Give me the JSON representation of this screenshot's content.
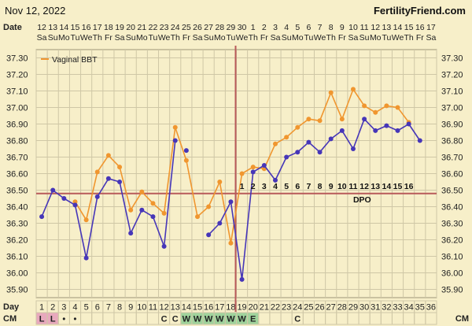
{
  "header": {
    "date": "Nov 12, 2022",
    "site": "FertilityFriend.com"
  },
  "row_labels": {
    "date": "Date",
    "day": "Day",
    "cm": "CM"
  },
  "dates": [
    "12",
    "13",
    "14",
    "15",
    "16",
    "17",
    "18",
    "19",
    "20",
    "21",
    "22",
    "23",
    "24",
    "25",
    "26",
    "27",
    "28",
    "29",
    "30",
    "1",
    "2",
    "3",
    "4",
    "5",
    "6",
    "7",
    "8",
    "9",
    "10",
    "11",
    "12",
    "13",
    "14",
    "15",
    "16",
    "17"
  ],
  "weekdays": [
    "Sa",
    "Su",
    "Mo",
    "Tu",
    "We",
    "Th",
    "Fr",
    "Sa",
    "Su",
    "Mo",
    "Tu",
    "We",
    "Th",
    "Fr",
    "Sa",
    "Su",
    "Mo",
    "Tu",
    "We",
    "Th",
    "Fr",
    "Sa",
    "Su",
    "Mo",
    "Tu",
    "We",
    "Th",
    "Fr",
    "Sa",
    "Su",
    "Mo",
    "Tu",
    "We",
    "Th",
    "Fr",
    "Sa"
  ],
  "cycle_days": [
    "1",
    "2",
    "3",
    "4",
    "5",
    "6",
    "7",
    "8",
    "9",
    "10",
    "11",
    "12",
    "13",
    "14",
    "15",
    "16",
    "17",
    "18",
    "19",
    "20",
    "21",
    "22",
    "23",
    "24",
    "25",
    "26",
    "27",
    "28",
    "29",
    "30",
    "31",
    "32",
    "33",
    "34",
    "35",
    "36"
  ],
  "cm": [
    "L",
    "L",
    "•",
    "•",
    "",
    "",
    "",
    "",
    "",
    "",
    "",
    "C",
    "C",
    "W",
    "W",
    "W",
    "W",
    "W",
    "W",
    "E",
    "",
    "",
    "",
    "C",
    "",
    "",
    "",
    "",
    "",
    "",
    "",
    "",
    "",
    "",
    "",
    ""
  ],
  "cm_colors": {
    "L": "#e8a9bd",
    "W": "#9fd39c",
    "E": "#9fd39c"
  },
  "dpo_label": "DPO",
  "dpo_numbers": [
    "1",
    "2",
    "3",
    "4",
    "5",
    "6",
    "7",
    "8",
    "9",
    "10",
    "11",
    "12",
    "13",
    "14",
    "15",
    "16"
  ],
  "colors": {
    "background": "#f7efc9",
    "grid": "#cfc7a6",
    "orange": "#f0962f",
    "purple": "#4636b8",
    "coverline": "#b85a5a",
    "ovulation_line": "#b85a5a"
  },
  "chart_data": {
    "type": "line",
    "x": [
      1,
      2,
      3,
      4,
      5,
      6,
      7,
      8,
      9,
      10,
      11,
      12,
      13,
      14,
      15,
      16,
      17,
      18,
      19,
      20,
      21,
      22,
      23,
      24,
      25,
      26,
      27,
      28,
      29,
      30,
      31,
      32,
      33,
      34,
      35,
      36
    ],
    "ylim": [
      35.85,
      37.35
    ],
    "y_ticks": [
      "37.30",
      "37.20",
      "37.10",
      "37.00",
      "36.90",
      "36.80",
      "36.70",
      "36.60",
      "36.50",
      "36.40",
      "36.30",
      "36.20",
      "36.10",
      "36.00",
      "35.90"
    ],
    "coverline": 36.48,
    "ovulation_day": 18,
    "legend": "Vaginal BBT",
    "series": [
      {
        "name": "Vaginal BBT",
        "color": "#f0962f",
        "values": [
          null,
          null,
          null,
          36.43,
          36.32,
          36.61,
          36.71,
          36.64,
          36.38,
          36.49,
          36.42,
          36.36,
          36.88,
          36.68,
          36.34,
          36.4,
          36.55,
          36.18,
          36.6,
          36.64,
          36.63,
          36.78,
          36.82,
          36.88,
          36.93,
          36.92,
          37.09,
          36.93,
          37.11,
          37.01,
          36.97,
          37.01,
          37.0,
          36.91,
          null,
          null
        ]
      },
      {
        "color": "#4636b8",
        "values": [
          36.34,
          36.5,
          36.45,
          36.41,
          36.09,
          36.46,
          36.57,
          36.55,
          36.24,
          36.38,
          36.34,
          36.16,
          36.8,
          36.74,
          null,
          36.23,
          36.3,
          36.43,
          35.96,
          36.61,
          36.65,
          36.56,
          36.7,
          36.73,
          36.79,
          36.73,
          36.81,
          36.86,
          36.75,
          36.93,
          36.86,
          36.89,
          36.86,
          36.9,
          36.8,
          null
        ]
      }
    ],
    "dashed_segments": [
      [
        12,
        16
      ]
    ],
    "isolated_points": [
      14
    ]
  }
}
